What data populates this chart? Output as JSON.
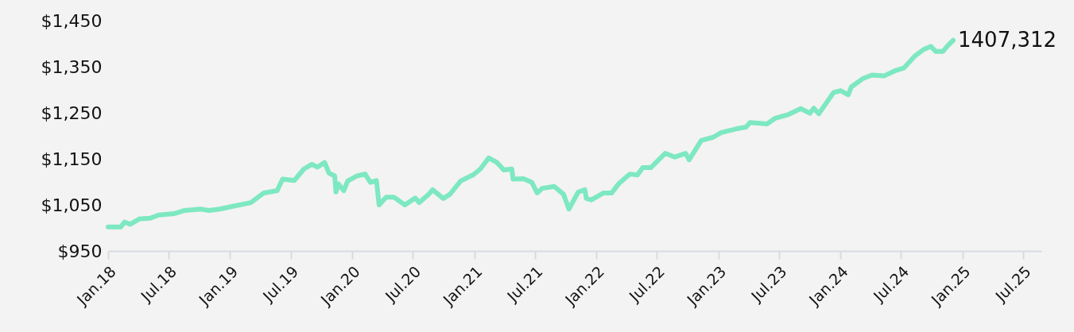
{
  "chart_data": {
    "type": "line",
    "x": [
      "2018-01-01",
      "2018-02-08",
      "2018-02-19",
      "2018-03-08",
      "2018-04-06",
      "2018-05-07",
      "2018-06-01",
      "2018-07-17",
      "2018-08-18",
      "2018-10-05",
      "2018-10-29",
      "2018-12-01",
      "2019-01-09",
      "2019-03-04",
      "2019-04-12",
      "2019-05-22",
      "2019-06-07",
      "2019-07-12",
      "2019-08-10",
      "2019-09-03",
      "2019-09-19",
      "2019-10-11",
      "2019-10-24",
      "2019-11-10",
      "2019-11-14",
      "2019-11-21",
      "2019-12-07",
      "2019-12-19",
      "2020-01-16",
      "2020-02-09",
      "2020-02-25",
      "2020-03-14",
      "2020-03-22",
      "2020-04-12",
      "2020-05-05",
      "2020-06-07",
      "2020-07-08",
      "2020-07-20",
      "2020-08-17",
      "2020-08-29",
      "2020-09-30",
      "2020-10-20",
      "2020-11-21",
      "2020-12-30",
      "2021-01-19",
      "2021-02-13",
      "2021-03-10",
      "2021-03-30",
      "2021-04-23",
      "2021-04-27",
      "2021-05-28",
      "2021-06-22",
      "2021-07-08",
      "2021-07-23",
      "2021-08-28",
      "2021-09-25",
      "2021-10-11",
      "2021-11-08",
      "2021-11-28",
      "2021-12-02",
      "2021-12-17",
      "2022-01-23",
      "2022-02-16",
      "2022-03-09",
      "2022-04-11",
      "2022-05-04",
      "2022-05-20",
      "2022-06-13",
      "2022-07-26",
      "2022-08-24",
      "2022-09-25",
      "2022-10-06",
      "2022-11-11",
      "2022-12-17",
      "2023-01-10",
      "2023-02-23",
      "2023-03-25",
      "2023-04-06",
      "2023-05-27",
      "2023-06-20",
      "2023-07-29",
      "2023-09-05",
      "2023-10-02",
      "2023-10-14",
      "2023-10-29",
      "2023-12-12",
      "2024-01-02",
      "2024-01-25",
      "2024-02-03",
      "2024-03-08",
      "2024-04-05",
      "2024-05-11",
      "2024-06-12",
      "2024-07-09",
      "2024-08-11",
      "2024-09-08",
      "2024-09-28",
      "2024-10-13",
      "2024-11-03",
      "2024-11-18",
      "2024-12-04"
    ],
    "series": [
      {
        "color": "#7de8c1",
        "values": [
          1002,
          1002,
          1013,
          1008,
          1020,
          1021,
          1028,
          1031,
          1038,
          1041,
          1038,
          1041,
          1047,
          1055,
          1076,
          1081,
          1106,
          1103,
          1128,
          1138,
          1132,
          1142,
          1119,
          1113,
          1078,
          1096,
          1081,
          1102,
          1113,
          1117,
          1099,
          1103,
          1050,
          1067,
          1067,
          1050,
          1065,
          1055,
          1073,
          1083,
          1064,
          1073,
          1102,
          1116,
          1128,
          1152,
          1142,
          1126,
          1128,
          1106,
          1107,
          1099,
          1076,
          1086,
          1090,
          1073,
          1041,
          1078,
          1083,
          1064,
          1061,
          1076,
          1076,
          1096,
          1117,
          1115,
          1131,
          1131,
          1162,
          1154,
          1162,
          1148,
          1190,
          1197,
          1207,
          1215,
          1219,
          1229,
          1226,
          1238,
          1246,
          1259,
          1249,
          1260,
          1248,
          1294,
          1298,
          1289,
          1306,
          1324,
          1332,
          1330,
          1341,
          1347,
          1373,
          1388,
          1394,
          1383,
          1383,
          1396,
          1407.312
        ],
        "value_labels": [
          null,
          null,
          null,
          null,
          null,
          null,
          null,
          null,
          null,
          null,
          null,
          null,
          null,
          null,
          null,
          null,
          null,
          null,
          null,
          null,
          null,
          null,
          null,
          null,
          null,
          null,
          null,
          null,
          null,
          null,
          null,
          null,
          null,
          null,
          null,
          null,
          null,
          null,
          null,
          null,
          null,
          null,
          null,
          null,
          null,
          null,
          null,
          null,
          null,
          null,
          null,
          null,
          null,
          null,
          null,
          null,
          null,
          null,
          null,
          null,
          null,
          null,
          null,
          null,
          null,
          null,
          null,
          null,
          null,
          null,
          null,
          null,
          null,
          null,
          null,
          null,
          null,
          null,
          null,
          null,
          null,
          null,
          null,
          null,
          null,
          null,
          null,
          null,
          null,
          null,
          null,
          null,
          null,
          null,
          null,
          null,
          null,
          null,
          null,
          null,
          "1407,312"
        ]
      }
    ],
    "xlim": [
      "2018-01-01",
      "2025-08-25"
    ],
    "xticks": [
      {
        "value": "2018-01-01",
        "label": "Jan.18"
      },
      {
        "value": "2018-07-01",
        "label": "Jul.18"
      },
      {
        "value": "2019-01-01",
        "label": "Jan.19"
      },
      {
        "value": "2019-07-01",
        "label": "Jul.19"
      },
      {
        "value": "2020-01-01",
        "label": "Jan.20"
      },
      {
        "value": "2020-07-01",
        "label": "Jul.20"
      },
      {
        "value": "2021-01-01",
        "label": "Jan.21"
      },
      {
        "value": "2021-07-01",
        "label": "Jul.21"
      },
      {
        "value": "2022-01-01",
        "label": "Jan.22"
      },
      {
        "value": "2022-07-01",
        "label": "Jul.22"
      },
      {
        "value": "2023-01-01",
        "label": "Jan.23"
      },
      {
        "value": "2023-07-01",
        "label": "Jul.23"
      },
      {
        "value": "2024-01-01",
        "label": "Jan.24"
      },
      {
        "value": "2024-07-01",
        "label": "Jul.24"
      },
      {
        "value": "2025-01-01",
        "label": "Jan.25"
      },
      {
        "value": "2025-07-01",
        "label": "Jul.25"
      }
    ],
    "ylim": [
      950,
      1450
    ],
    "yticks": [
      {
        "value": 950,
        "label": "$950"
      },
      {
        "value": 1050,
        "label": "$1,050"
      },
      {
        "value": 1150,
        "label": "$1,150"
      },
      {
        "value": 1250,
        "label": "$1,250"
      },
      {
        "value": 1350,
        "label": "$1,350"
      },
      {
        "value": 1450,
        "label": "$1,450"
      }
    ],
    "grid": false,
    "marker": "none",
    "line_style": "solid"
  }
}
